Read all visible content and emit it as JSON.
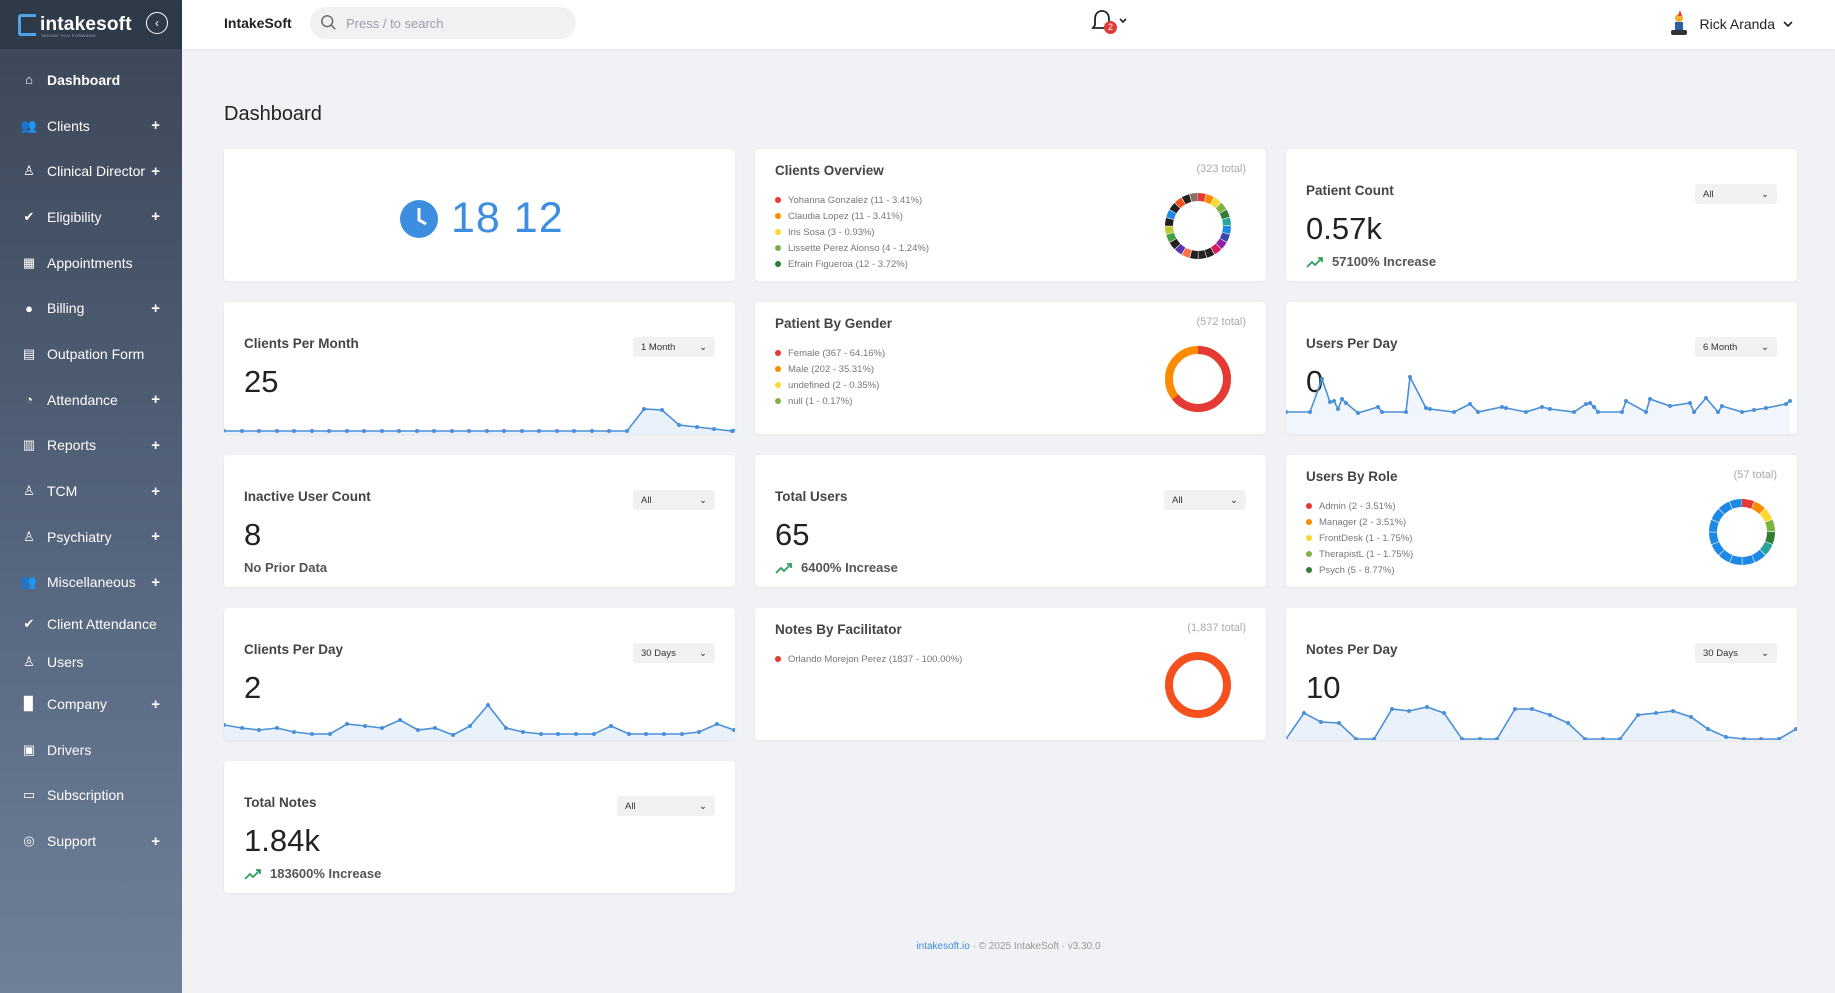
{
  "brand": {
    "name": "intakesoft",
    "tagline": "TAKING YOU FORWARD"
  },
  "colors": {
    "accent": "#3d8ee0",
    "sidebar": "#4b586b",
    "badge": "#e53935"
  },
  "sidebar": {
    "items": [
      {
        "label": "Dashboard",
        "icon": "home-icon",
        "expand": ""
      },
      {
        "label": "Clients",
        "icon": "users-icon",
        "expand": "+"
      },
      {
        "label": "Clinical Director",
        "icon": "person-icon",
        "expand": "+"
      },
      {
        "label": "Eligibility",
        "icon": "user-check-icon",
        "expand": "+"
      },
      {
        "label": "Appointments",
        "icon": "calendar-icon",
        "expand": ""
      },
      {
        "label": "Billing",
        "icon": "chat-icon",
        "expand": "+"
      },
      {
        "label": "Outpation Form",
        "icon": "form-icon",
        "expand": ""
      },
      {
        "label": "Attendance",
        "icon": "user-clock-icon",
        "expand": "+"
      },
      {
        "label": "Reports",
        "icon": "bar-chart-icon",
        "expand": "+"
      },
      {
        "label": "TCM",
        "icon": "person-icon",
        "expand": "+"
      },
      {
        "label": "Psychiatry",
        "icon": "person-icon",
        "expand": "+"
      },
      {
        "label": "Miscellaneous",
        "icon": "users-icon",
        "expand": "+"
      },
      {
        "label": "Client Attendance",
        "icon": "user-check-icon",
        "expand": ""
      },
      {
        "label": "Users",
        "icon": "person-icon",
        "expand": ""
      },
      {
        "label": "Company",
        "icon": "building-icon",
        "expand": "+"
      },
      {
        "label": "Drivers",
        "icon": "bus-icon",
        "expand": ""
      },
      {
        "label": "Subscription",
        "icon": "id-card-icon",
        "expand": ""
      },
      {
        "label": "Support",
        "icon": "lifebuoy-icon",
        "expand": "+"
      }
    ]
  },
  "header": {
    "app_name": "IntakeSoft",
    "search_placeholder": "Press / to search",
    "notification_count": "2",
    "user_name": "Rick Aranda"
  },
  "page": {
    "title": "Dashboard"
  },
  "cards": {
    "timer": {
      "value": "18 12"
    },
    "clients_overview": {
      "title": "Clients Overview",
      "total": "(323 total)",
      "legend": [
        {
          "label": "Yohanna Gonzalez (11 - 3.41%)",
          "color": "#e53935"
        },
        {
          "label": "Claudia Lopez (11 - 3.41%)",
          "color": "#fb8c00"
        },
        {
          "label": "Iris Sosa (3 - 0.93%)",
          "color": "#fdd835"
        },
        {
          "label": "Lissette Perez Alonso (4 - 1.24%)",
          "color": "#7cb342"
        },
        {
          "label": "Efrain Figueroa (12 - 3.72%)",
          "color": "#2e7d32"
        }
      ]
    },
    "patient_count": {
      "title": "Patient Count",
      "filter": "All",
      "value": "0.57k",
      "change": "57100% Increase"
    },
    "clients_per_month": {
      "title": "Clients Per Month",
      "filter": "1 Month",
      "value": "25"
    },
    "patient_by_gender": {
      "title": "Patient By Gender",
      "total": "(572 total)",
      "legend": [
        {
          "label": "Female (367 - 64.16%)",
          "color": "#e53935"
        },
        {
          "label": "Male (202 - 35.31%)",
          "color": "#fb8c00"
        },
        {
          "label": "undefined (2 - 0.35%)",
          "color": "#fdd835"
        },
        {
          "label": "null (1 - 0.17%)",
          "color": "#7cb342"
        }
      ]
    },
    "users_per_day": {
      "title": "Users Per Day",
      "filter": "6 Month",
      "value": "0"
    },
    "inactive_user_count": {
      "title": "Inactive User Count",
      "filter": "All",
      "value": "8",
      "note": "No Prior Data"
    },
    "total_users": {
      "title": "Total Users",
      "filter": "All",
      "value": "65",
      "change": "6400% Increase"
    },
    "users_by_role": {
      "title": "Users By Role",
      "total": "(57 total)",
      "legend": [
        {
          "label": "Admin (2 - 3.51%)",
          "color": "#e53935"
        },
        {
          "label": "Manager (2 - 3.51%)",
          "color": "#fb8c00"
        },
        {
          "label": "FrontDesk (1 - 1.75%)",
          "color": "#fdd835"
        },
        {
          "label": "TherapistL (1 - 1.75%)",
          "color": "#7cb342"
        },
        {
          "label": "Psych (5 - 8.77%)",
          "color": "#2e7d32"
        }
      ]
    },
    "clients_per_day": {
      "title": "Clients Per Day",
      "filter": "30 Days",
      "value": "2"
    },
    "notes_by_facilitator": {
      "title": "Notes By Facilitator",
      "total": "(1,837 total)",
      "legend": [
        {
          "label": "Orlando Morejon Perez (1837 - 100.00%)",
          "color": "#e53935"
        }
      ]
    },
    "notes_per_day": {
      "title": "Notes Per Day",
      "filter": "30 Days",
      "value": "10"
    },
    "total_notes": {
      "title": "Total Notes",
      "filter": "All",
      "value": "1.84k",
      "change": "183600% Increase"
    }
  },
  "footer": {
    "link": "intakesoft.io",
    "copyright": "© 2025 IntakeSoft",
    "version": "v3.30.0"
  }
}
